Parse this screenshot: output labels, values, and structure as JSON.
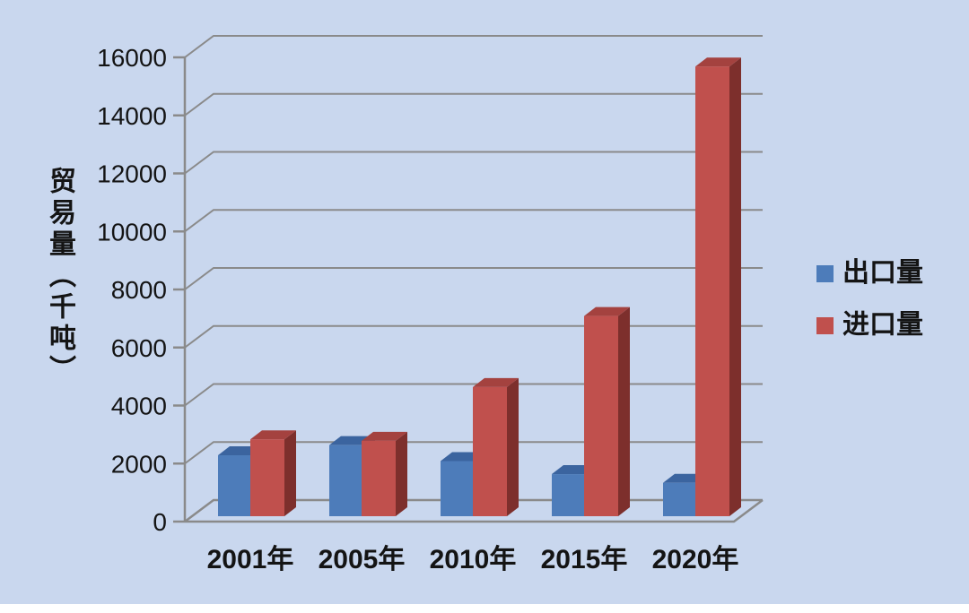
{
  "chart_data": {
    "type": "bar",
    "style": "3d-clustered-column",
    "title": "",
    "ylabel": "贸易量（千吨）",
    "xlabel": "",
    "categories": [
      "2001年",
      "2005年",
      "2010年",
      "2015年",
      "2020年"
    ],
    "series": [
      {
        "name": "出口量",
        "values": [
          2100,
          2450,
          1900,
          1450,
          1150
        ],
        "color_front": "#4d7cba",
        "color_top": "#3b649f",
        "color_side": "#35588c"
      },
      {
        "name": "进口量",
        "values": [
          2650,
          2600,
          4450,
          6900,
          15500
        ],
        "color_front": "#c0504d",
        "color_top": "#a4423f",
        "color_side": "#7d2f2c"
      }
    ],
    "yticks": [
      0,
      2000,
      4000,
      6000,
      8000,
      10000,
      12000,
      14000,
      16000
    ],
    "ylim": [
      0,
      16000
    ],
    "grid": true,
    "legend_position": "right",
    "colors": {
      "background": "#c9d7ee",
      "gridline": "#8a8a8a",
      "text": "#141414"
    }
  }
}
